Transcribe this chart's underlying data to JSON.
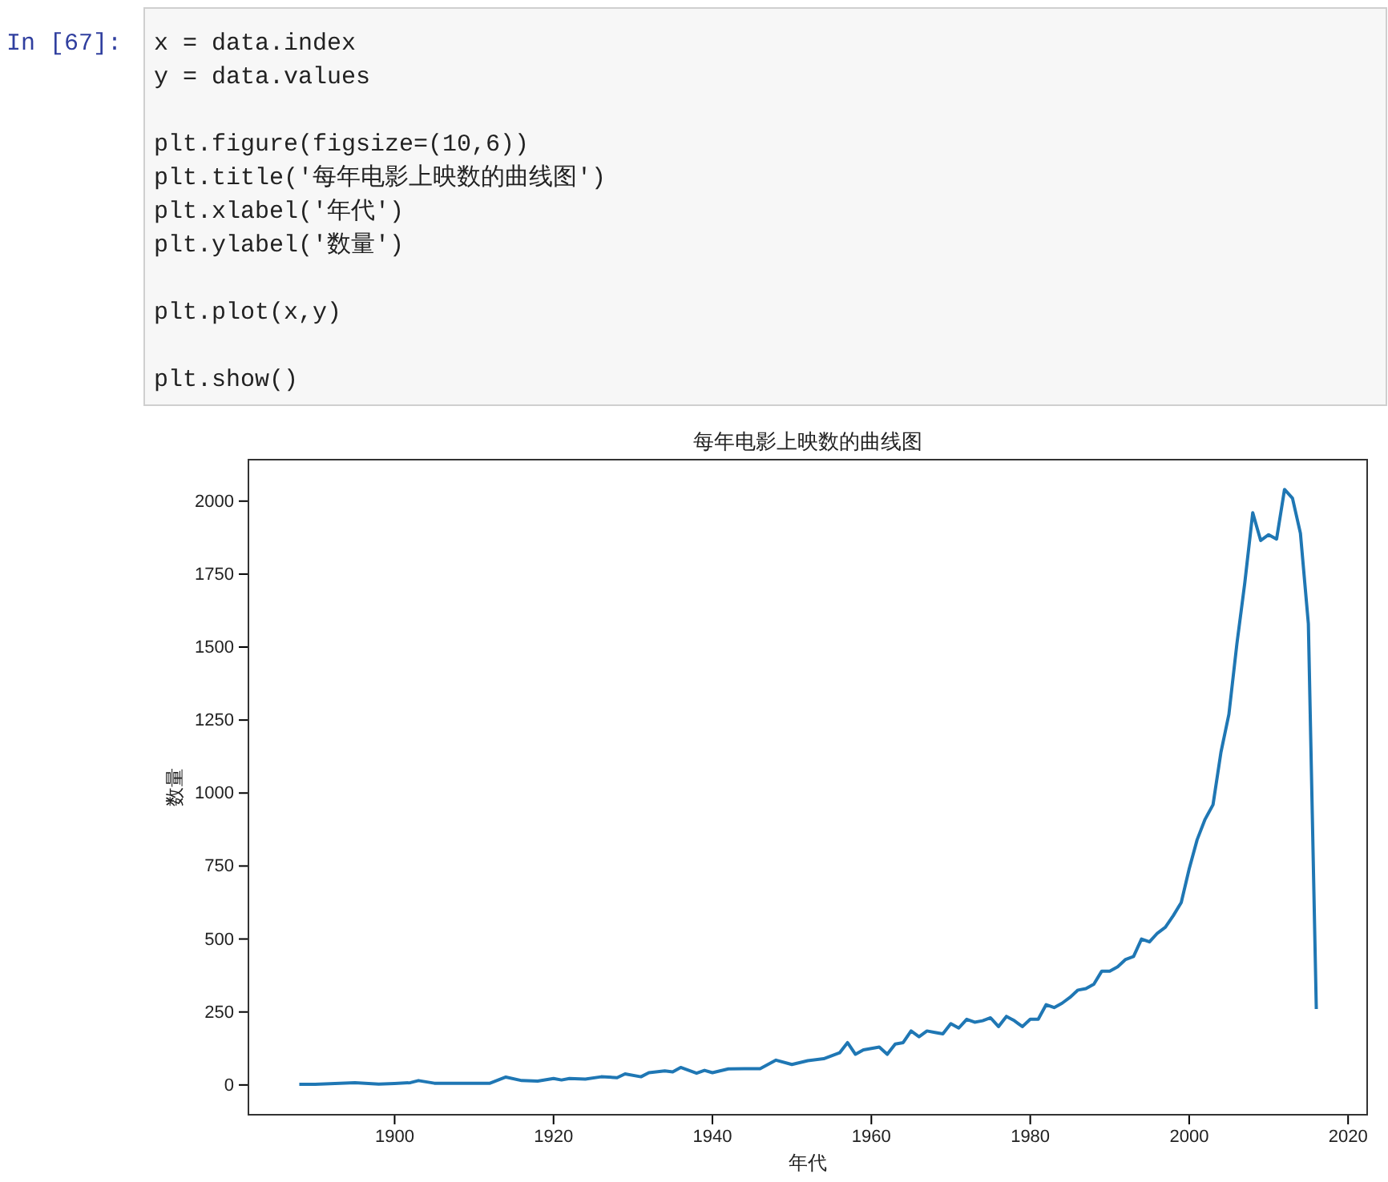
{
  "chart_data": {
    "type": "line",
    "title": "每年电影上映数的曲线图",
    "xlabel": "年代",
    "ylabel": "数量",
    "annotations": [
      "In  [67]:",
      "x = data.index\ny = data.values\n\nplt.figure(figsize=(10,6))\nplt.title('每年电影上映数的曲线图')\nplt.xlabel('年代')\nplt.ylabel('数量')\n\nplt.plot(x,y)\n\nplt.show()"
    ],
    "x": [
      1888,
      1890,
      1895,
      1898,
      1900,
      1902,
      1903,
      1905,
      1910,
      1912,
      1914,
      1916,
      1918,
      1920,
      1921,
      1922,
      1924,
      1926,
      1928,
      1929,
      1931,
      1932,
      1934,
      1935,
      1936,
      1938,
      1939,
      1940,
      1942,
      1944,
      1946,
      1948,
      1950,
      1952,
      1954,
      1956,
      1957,
      1958,
      1959,
      1961,
      1962,
      1963,
      1964,
      1965,
      1966,
      1967,
      1968,
      1969,
      1970,
      1971,
      1972,
      1973,
      1974,
      1975,
      1976,
      1977,
      1978,
      1979,
      1980,
      1981,
      1982,
      1983,
      1984,
      1985,
      1986,
      1987,
      1988,
      1989,
      1990,
      1991,
      1992,
      1993,
      1994,
      1995,
      1996,
      1997,
      1998,
      1999,
      2000,
      2001,
      2002,
      2003,
      2004,
      2005,
      2006,
      2007,
      2008,
      2009,
      2010,
      2011,
      2012,
      2013,
      2014,
      2015,
      2016
    ],
    "series": [
      {
        "color": "#1f77b4",
        "values": [
          2,
          2,
          8,
          3,
          5,
          8,
          15,
          6,
          6,
          6,
          27,
          15,
          13,
          22,
          17,
          22,
          20,
          28,
          25,
          38,
          28,
          42,
          48,
          45,
          60,
          40,
          50,
          42,
          55,
          56,
          56,
          85,
          70,
          83,
          90,
          110,
          145,
          105,
          120,
          130,
          105,
          140,
          145,
          185,
          165,
          185,
          180,
          175,
          210,
          195,
          225,
          215,
          220,
          230,
          200,
          235,
          220,
          200,
          225,
          225,
          275,
          265,
          280,
          300,
          325,
          330,
          345,
          390,
          390,
          405,
          430,
          440,
          500,
          490,
          520,
          540,
          580,
          625,
          740,
          840,
          910,
          960,
          1140,
          1270,
          1510,
          1720,
          1960,
          1865,
          1885,
          1870,
          2040,
          2010,
          1890,
          1580,
          260
        ]
      }
    ],
    "xlim": [
      1881.6,
      2022.4
    ],
    "ylim": [
      -102,
      2142
    ],
    "xticks": [
      1900,
      1920,
      1940,
      1960,
      1980,
      2000,
      2020
    ],
    "yticks": [
      0,
      250,
      500,
      750,
      1000,
      1250,
      1500,
      1750,
      2000
    ],
    "grid": false,
    "marker": "none",
    "line_style": "solid"
  }
}
